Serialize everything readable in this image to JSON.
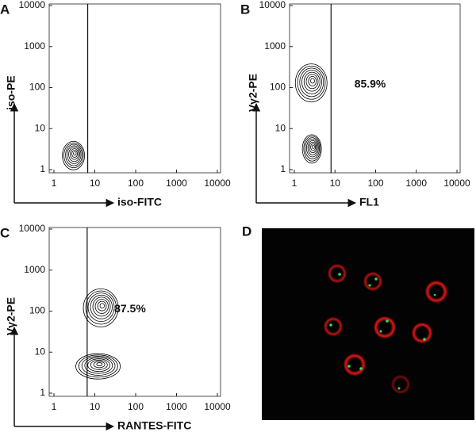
{
  "chart_data": [
    {
      "type": "contour",
      "panel": "A",
      "x_label": "iso-FITC",
      "y_label": "iso-PE",
      "log_scale": true,
      "xlim": [
        1,
        10000
      ],
      "ylim": [
        1,
        10000
      ],
      "xticks": [
        1,
        10,
        100,
        1000,
        10000
      ],
      "yticks": [
        1,
        10,
        100,
        1000,
        10000
      ],
      "gate_x": 6.7,
      "color": "#000000",
      "clusters": [
        {
          "x": 3,
          "y": 2.2
        }
      ]
    },
    {
      "type": "contour",
      "panel": "B",
      "x_label": "FL1",
      "y_label": "Vγ2-PE",
      "log_scale": true,
      "xlim": [
        1,
        10000
      ],
      "ylim": [
        1,
        10000
      ],
      "xticks": [
        1,
        10,
        100,
        1000,
        10000
      ],
      "yticks": [
        1,
        10,
        100,
        1000,
        10000
      ],
      "gate_x": 8,
      "annotation": "85.9%",
      "color": "#000000",
      "clusters": [
        {
          "x": 2.6,
          "y": 130
        },
        {
          "x": 2.7,
          "y": 3.2
        }
      ]
    },
    {
      "type": "contour",
      "panel": "C",
      "x_label": "RANTES-FITC",
      "y_label": "Vγ2-PE",
      "log_scale": true,
      "xlim": [
        1,
        10000
      ],
      "ylim": [
        1,
        10000
      ],
      "xticks": [
        1,
        10,
        100,
        1000,
        10000
      ],
      "yticks": [
        1,
        10,
        100,
        1000,
        10000
      ],
      "gate_x": 6.5,
      "annotation": "87.5%",
      "color": "#000000",
      "clusters": [
        {
          "x": 14,
          "y": 120
        },
        {
          "x": 12,
          "y": 4.5
        }
      ]
    }
  ],
  "image_panel": {
    "label": "D"
  }
}
